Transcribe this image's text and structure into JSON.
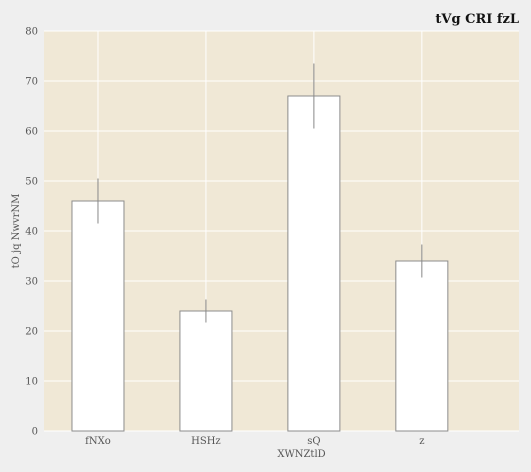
{
  "chart_data": {
    "type": "bar",
    "title": "tVg CRI  fzL",
    "xlabel": "XWNZtlD",
    "ylabel": "tO jq NwvrNM",
    "categories": [
      "fNXo",
      "HSHz",
      "sQ",
      "z"
    ],
    "values": [
      46,
      24,
      67,
      34
    ],
    "error": [
      4.5,
      2.3,
      6.5,
      3.3
    ],
    "ylim": [
      0,
      80
    ],
    "yticks": [
      "0",
      "10",
      "20",
      "30",
      "40",
      "50",
      "60",
      "70",
      "80"
    ],
    "grid": true,
    "colors": {
      "plot_bg": "#f0e8d6",
      "page_bg": "#efefef",
      "bar_fill": "#ffffff",
      "bar_stroke": "#8c8c8c",
      "grid": "#ffffff",
      "error_bar": "#888888"
    }
  }
}
